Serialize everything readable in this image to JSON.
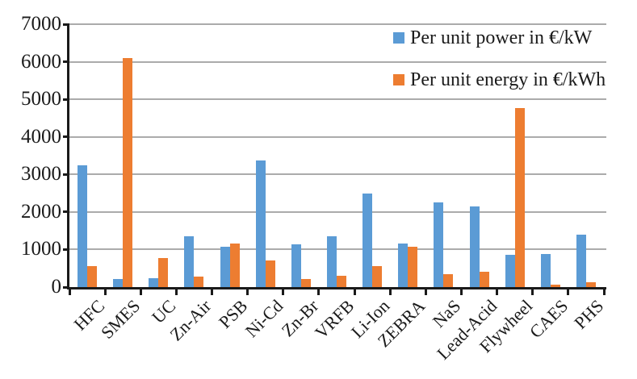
{
  "chart_data": {
    "type": "bar",
    "title": "",
    "xlabel": "",
    "ylabel": "",
    "categories": [
      "HFC",
      "SMES",
      "UC",
      "Zn-Air",
      "PSB",
      "Ni-Cd",
      "Zn-Br",
      "VRFB",
      "Li-Ion",
      "ZEBRA",
      "NaS",
      "Lead-Acid",
      "Flywheel",
      "CAES",
      "PHS"
    ],
    "series": [
      {
        "name": "Per unit power in €/kW",
        "color": "#5B9BD5",
        "values": [
          3250,
          220,
          230,
          1350,
          1080,
          3380,
          1130,
          1360,
          2500,
          1150,
          2250,
          2140,
          860,
          890,
          1400
        ]
      },
      {
        "name": "Per unit energy in €/kWh",
        "color": "#ED7D31",
        "values": [
          550,
          6100,
          780,
          270,
          1150,
          700,
          210,
          300,
          550,
          1080,
          340,
          410,
          4770,
          70,
          130
        ]
      }
    ],
    "ylim": [
      0,
      7000
    ],
    "yticks": [
      0,
      1000,
      2000,
      3000,
      4000,
      5000,
      6000,
      7000
    ],
    "grid": true,
    "legend_position": "top-right"
  },
  "colors": {
    "series_power": "#5B9BD5",
    "series_energy": "#ED7D31",
    "gridline": "#ABABAB",
    "axis": "#1A1A1A",
    "text": "#1A1A1A",
    "background": "#FFFFFF"
  }
}
